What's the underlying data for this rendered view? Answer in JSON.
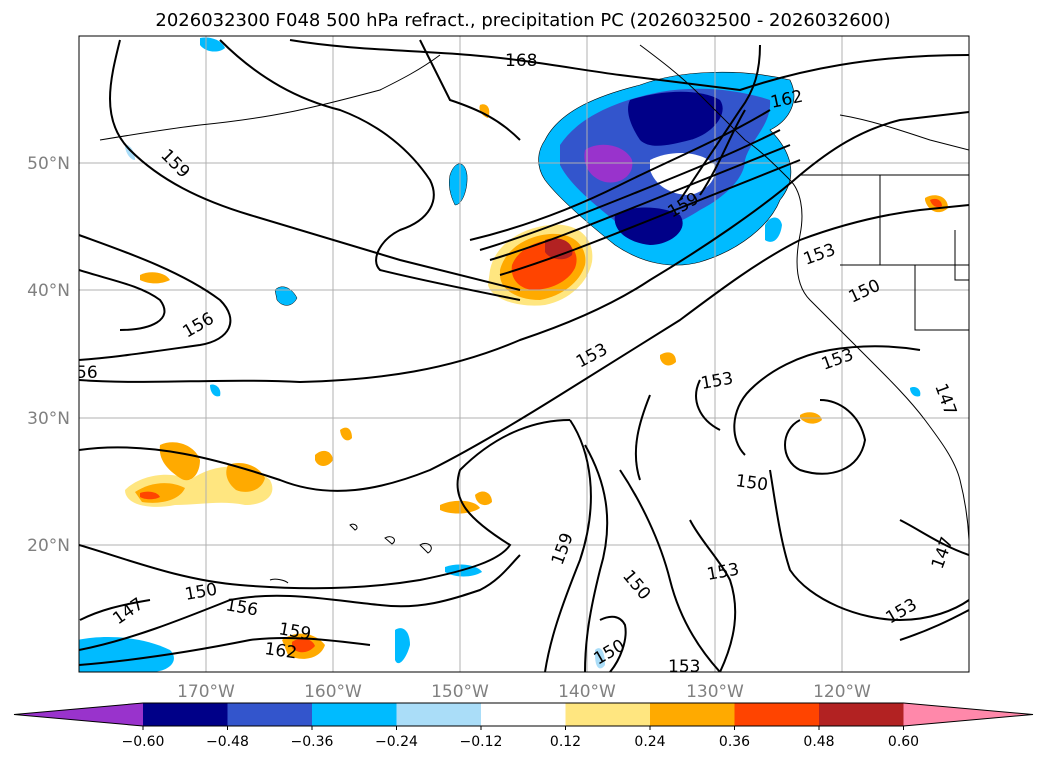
{
  "title": "2026032300 F048 500 hPa refract., precipitation PC (2026032500 - 2026032600)",
  "axes": {
    "lon_labels": [
      "170°W",
      "160°W",
      "150°W",
      "140°W",
      "130°W",
      "120°W"
    ],
    "lat_labels": [
      "50°N",
      "40°N",
      "30°N",
      "20°N"
    ]
  },
  "colorbar": {
    "ticks": [
      "−0.60",
      "−0.48",
      "−0.36",
      "−0.24",
      "−0.12",
      "0.12",
      "0.24",
      "0.36",
      "0.48",
      "0.60"
    ],
    "colors": [
      "#9933cc",
      "#000088",
      "#3355cc",
      "#00bbff",
      "#aaddf8",
      "#ffffff",
      "#ffe680",
      "#ffaa00",
      "#ff4400",
      "#b22222",
      "#ff88aa"
    ]
  },
  "contour_labels": [
    {
      "text": "168"
    },
    {
      "text": "162"
    },
    {
      "text": "159"
    },
    {
      "text": "159"
    },
    {
      "text": "153"
    },
    {
      "text": "150"
    },
    {
      "text": "156"
    },
    {
      "text": "56"
    },
    {
      "text": "153"
    },
    {
      "text": "153"
    },
    {
      "text": "153"
    },
    {
      "text": "147"
    },
    {
      "text": "150"
    },
    {
      "text": "159"
    },
    {
      "text": "150"
    },
    {
      "text": "153"
    },
    {
      "text": "147"
    },
    {
      "text": "150"
    },
    {
      "text": "156"
    },
    {
      "text": "159"
    },
    {
      "text": "162"
    },
    {
      "text": "150"
    },
    {
      "text": "153"
    },
    {
      "text": "153"
    },
    {
      "text": "147"
    }
  ]
}
